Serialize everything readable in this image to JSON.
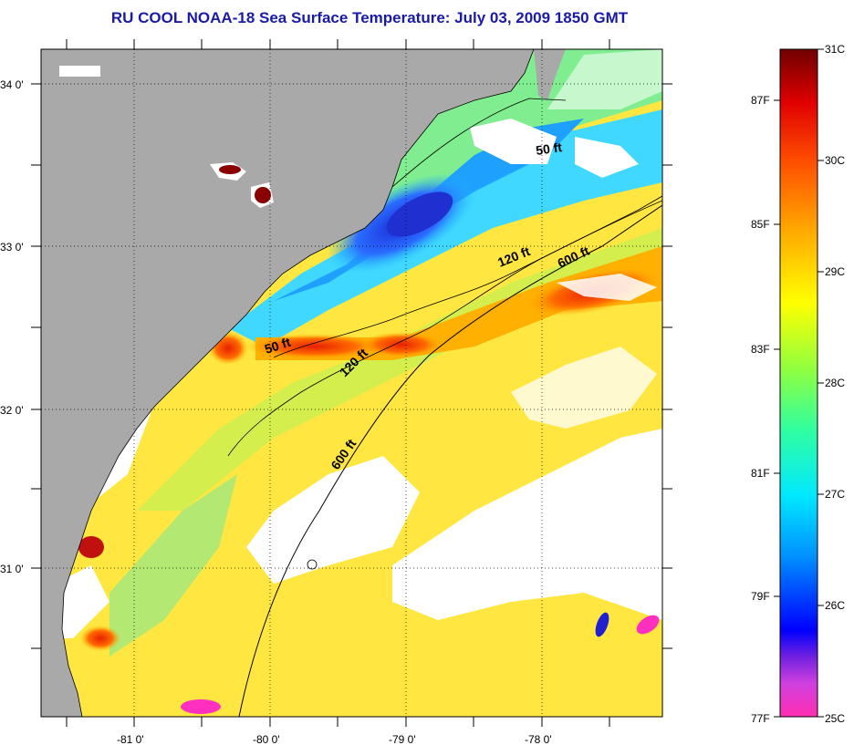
{
  "title": "RU COOL  NOAA-18  Sea Surface Temperature:  July 03, 2009 1850 GMT",
  "map": {
    "lat_ticks": [
      "34 0'",
      "33 0'",
      "32 0'",
      "31 0'"
    ],
    "lon_ticks": [
      "-81 0'",
      "-80 0'",
      "-79 0'",
      "-78 0'"
    ],
    "contours": [
      {
        "label": "50 ft",
        "id": "50a"
      },
      {
        "label": "50 ft",
        "id": "50b"
      },
      {
        "label": "120 ft",
        "id": "120a"
      },
      {
        "label": "120 ft",
        "id": "120b"
      },
      {
        "label": "600 ft",
        "id": "600a"
      },
      {
        "label": "600 ft",
        "id": "600b"
      }
    ]
  },
  "colorbar": {
    "fahrenheit_labels": [
      "87F",
      "85F",
      "83F",
      "81F",
      "79F",
      "77F"
    ],
    "celsius_labels": [
      "31C",
      "30C",
      "29C",
      "28C",
      "27C",
      "26C",
      "25C"
    ],
    "colors": [
      "#ff2fb0",
      "#a020e0",
      "#0000ff",
      "#0080ff",
      "#00e0ff",
      "#40ffa0",
      "#a0ff30",
      "#ffff00",
      "#ffc000",
      "#ff7000",
      "#e00000",
      "#700000"
    ]
  },
  "palette": {
    "land": "#a9a9a9",
    "cloud": "#ffffff",
    "cold": "#1a3cff",
    "cool": "#20c0ff",
    "mid": "#80f080",
    "warm": "#ffe020",
    "hot": "#ff6a00",
    "veryhot": "#a00000"
  }
}
